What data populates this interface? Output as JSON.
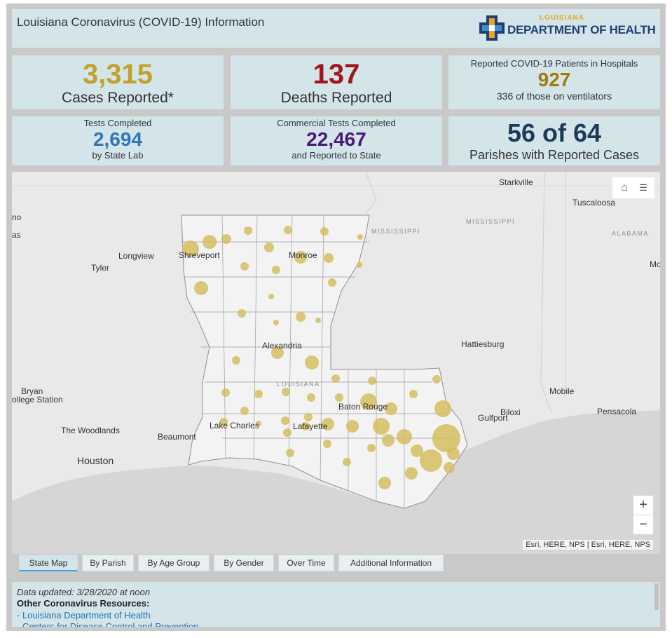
{
  "header": {
    "title": "Louisiana Coronavirus (COVID-19) Information",
    "logo_small": "LOUISIANA",
    "logo_big": "DEPARTMENT OF HEALTH"
  },
  "stats": {
    "cases": {
      "value": "3,315",
      "label": "Cases Reported*",
      "color": "#c2a22a"
    },
    "deaths": {
      "value": "137",
      "label": "Deaths Reported",
      "color": "#a3161b"
    },
    "hospital": {
      "title": "Reported COVID-19 Patients in Hospitals",
      "value": "927",
      "sub": "336 of those on ventilators",
      "color": "#a07a12"
    },
    "tests_state": {
      "title": "Tests Completed",
      "value": "2,694",
      "sub": "by State Lab",
      "color": "#2f77b7"
    },
    "tests_commercial": {
      "title": "Commercial Tests Completed",
      "value": "22,467",
      "sub": "and Reported to State",
      "color": "#4b1a78"
    },
    "parishes": {
      "value": "56 of 64",
      "label": "Parishes with Reported Cases",
      "color": "#1e3a5a"
    }
  },
  "map": {
    "places": {
      "starkville": "Starkville",
      "tuscaloosa": "Tuscaloosa",
      "no": "no",
      "as": "as",
      "longview": "Longview",
      "tyler": "Tyler",
      "shreveport": "Shreveport",
      "monroe": "Monroe",
      "mississippi_faint": "MISSISSIPPI",
      "mississippi_state": "MISSISSIPPI",
      "alabama": "ALABAMA",
      "mo": "Mo",
      "alexandria": "Alexandria",
      "hattiesburg": "Hattiesburg",
      "bryan": "Bryan",
      "college_station": "ollege Station",
      "louisiana_faint": "LOUISIANA",
      "baton_rouge": "Baton Rouge",
      "mobile": "Mobile",
      "biloxi": "Biloxi",
      "gulfport": "Gulfport",
      "pensacola": "Pensacola",
      "the_woodlands": "The Woodlands",
      "beaumont": "Beaumont",
      "lake_charles": "Lake Charles",
      "lafayette": "Lafayette",
      "houston": "Houston"
    },
    "tools": {
      "home_icon": "home-icon",
      "list_icon": "layer-list-icon"
    },
    "zoom_in": "+",
    "zoom_out": "−",
    "attribution": "Esri, HERE, NPS | Esri, HERE, NPS",
    "bubble_color": "#d4bd5f"
  },
  "tabs": [
    "State Map",
    "By Parish",
    "By Age Group",
    "By Gender",
    "Over Time",
    "Additional Information"
  ],
  "footer": {
    "updated": "Data updated: 3/28/2020 at noon",
    "resources_title": "Other Coronavirus Resources:",
    "link1": "- Louisiana Department of Health",
    "link2": "- Centers for Disease Control and Prevention"
  }
}
